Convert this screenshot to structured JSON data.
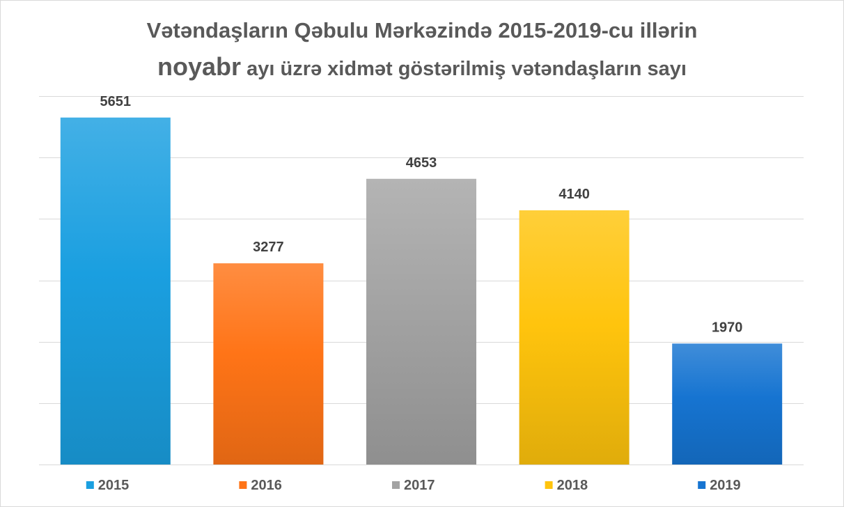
{
  "chart_data": {
    "type": "bar",
    "title_line1": "Vətəndaşların Qəbulu Mərkəzində 2015-2019-cu illərin",
    "title_line2_emphasis": "noyabr",
    "title_line2_rest": " ayı üzrə xidmət göstərilmiş vətəndaşların sayı",
    "categories": [
      "2015",
      "2016",
      "2017",
      "2018",
      "2019"
    ],
    "values": [
      5651,
      3277,
      4653,
      4140,
      1970
    ],
    "data_labels": [
      "5651",
      "3277",
      "4653",
      "4140",
      "1970"
    ],
    "colors": [
      "#1a9fe0",
      "#ff7417",
      "#a3a3a3",
      "#ffc40d",
      "#1674d1"
    ],
    "ylim": [
      0,
      6000
    ],
    "gridlines": true,
    "gridline_step": 1000,
    "y_tick_labels_shown": false,
    "legend_position": "bottom"
  }
}
